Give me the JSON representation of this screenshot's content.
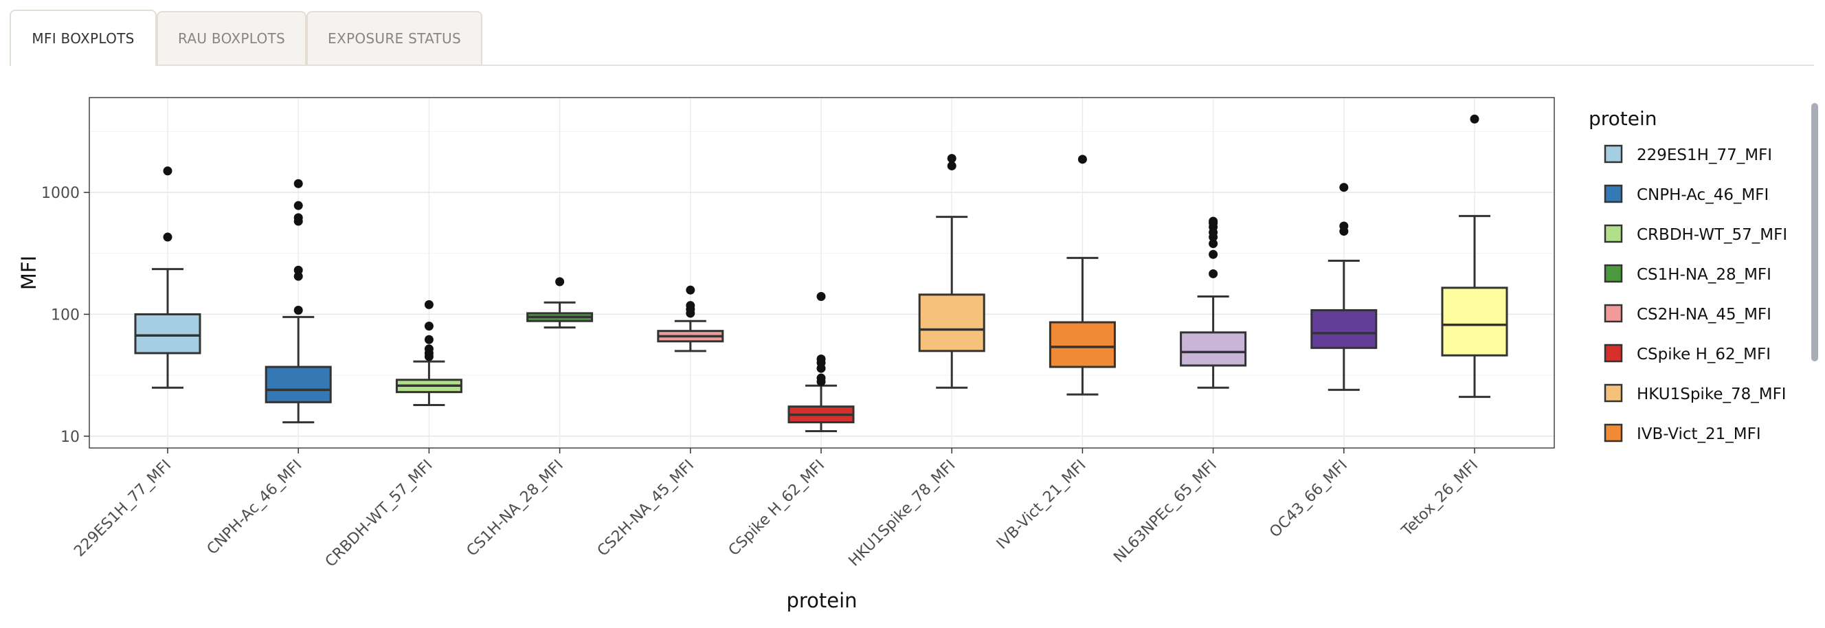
{
  "tabs": [
    {
      "label": "MFI BOXPLOTS",
      "active": true
    },
    {
      "label": "RAU BOXPLOTS",
      "active": false
    },
    {
      "label": "EXPOSURE STATUS",
      "active": false
    }
  ],
  "chart_data": {
    "type": "boxplot",
    "xlabel": "protein",
    "ylabel": "MFI",
    "yscale": "log10",
    "ylim": [
      8,
      6000
    ],
    "yticks": [
      10,
      100,
      1000
    ],
    "ytick_labels": [
      "10",
      "100",
      "1000"
    ],
    "grid": true,
    "legend": {
      "title": "protein",
      "position": "right"
    },
    "categories": [
      "229ES1H_77_MFI",
      "CNPH-Ac_46_MFI",
      "CRBDH-WT_57_MFI",
      "CS1H-NA_28_MFI",
      "CS2H-NA_45_MFI",
      "CSpike H_62_MFI",
      "HKU1Spike_78_MFI",
      "IVB-Vict_21_MFI",
      "NL63NPEc_65_MFI",
      "OC43_66_MFI",
      "Tetox_26_MFI"
    ],
    "legend_entries": [
      "229ES1H_77_MFI",
      "CNPH-Ac_46_MFI",
      "CRBDH-WT_57_MFI",
      "CS1H-NA_28_MFI",
      "CS2H-NA_45_MFI",
      "CSpike H_62_MFI",
      "HKU1Spike_78_MFI",
      "IVB-Vict_21_MFI"
    ],
    "series": [
      {
        "category": "229ES1H_77_MFI",
        "color": "#a6cee3",
        "whisker_low": 25,
        "q1": 48,
        "median": 67,
        "q3": 100,
        "whisker_high": 235,
        "outliers": [
          430,
          1500
        ]
      },
      {
        "category": "CNPH-Ac_46_MFI",
        "color": "#3478b4",
        "whisker_low": 13,
        "q1": 19,
        "median": 24,
        "q3": 37,
        "whisker_high": 95,
        "outliers": [
          108,
          205,
          230,
          580,
          620,
          780,
          1180
        ]
      },
      {
        "category": "CRBDH-WT_57_MFI",
        "color": "#b2df8a",
        "whisker_low": 18,
        "q1": 23,
        "median": 26,
        "q3": 29,
        "whisker_high": 41,
        "outliers": [
          45,
          48,
          52,
          62,
          80,
          120
        ]
      },
      {
        "category": "CS1H-NA_28_MFI",
        "color": "#4c9a3e",
        "whisker_low": 78,
        "q1": 88,
        "median": 95,
        "q3": 102,
        "whisker_high": 125,
        "outliers": [
          185
        ]
      },
      {
        "category": "CS2H-NA_45_MFI",
        "color": "#f09a99",
        "whisker_low": 50,
        "q1": 60,
        "median": 66,
        "q3": 73,
        "whisker_high": 88,
        "outliers": [
          102,
          110,
          118,
          158
        ]
      },
      {
        "category": "CSpike H_62_MFI",
        "color": "#d7302c",
        "whisker_low": 11,
        "q1": 13,
        "median": 15,
        "q3": 17.5,
        "whisker_high": 26,
        "outliers": [
          28,
          30,
          36,
          40,
          43,
          140
        ]
      },
      {
        "category": "HKU1Spike_78_MFI",
        "color": "#f5c17b",
        "whisker_low": 25,
        "q1": 50,
        "median": 75,
        "q3": 145,
        "whisker_high": 630,
        "outliers": [
          1650,
          1900
        ]
      },
      {
        "category": "IVB-Vict_21_MFI",
        "color": "#f08a34",
        "whisker_low": 22,
        "q1": 37,
        "median": 54,
        "q3": 86,
        "whisker_high": 290,
        "outliers": [
          1870
        ]
      },
      {
        "category": "NL63NPEc_65_MFI",
        "color": "#c8b5d8",
        "whisker_low": 25,
        "q1": 38,
        "median": 49,
        "q3": 71,
        "whisker_high": 140,
        "outliers": [
          215,
          310,
          380,
          430,
          470,
          520,
          560,
          580
        ]
      },
      {
        "category": "OC43_66_MFI",
        "color": "#623e98",
        "whisker_low": 24,
        "q1": 53,
        "median": 70,
        "q3": 108,
        "whisker_high": 275,
        "outliers": [
          480,
          530,
          1100
        ]
      },
      {
        "category": "Tetox_26_MFI",
        "color": "#fefe9f",
        "whisker_low": 21,
        "q1": 46,
        "median": 82,
        "q3": 165,
        "whisker_high": 640,
        "outliers": [
          4000
        ]
      }
    ]
  }
}
